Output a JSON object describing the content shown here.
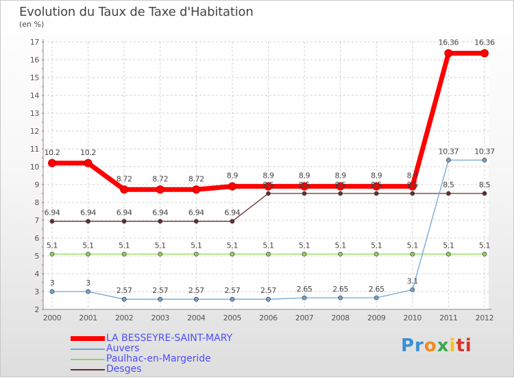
{
  "header": {
    "title": "Evolution du Taux de Taxe d'Habitation",
    "subtitle": "(en %)"
  },
  "chart_data": {
    "type": "line",
    "title": "Evolution du Taux de Taxe d'Habitation",
    "ylabel": "(en %)",
    "xlabel": "",
    "ylim": [
      2,
      17
    ],
    "yticks": [
      2,
      3,
      4,
      5,
      6,
      7,
      8,
      9,
      10,
      11,
      12,
      13,
      14,
      15,
      16,
      17
    ],
    "categories": [
      "2000",
      "2001",
      "2002",
      "2003",
      "2004",
      "2005",
      "2006",
      "2007",
      "2008",
      "2009",
      "2010",
      "2011",
      "2012"
    ],
    "series": [
      {
        "name": "Desges",
        "color": "#6b2a2a",
        "width": 1.3,
        "dot": 5,
        "values": [
          6.94,
          6.94,
          6.94,
          6.94,
          6.94,
          6.94,
          8.5,
          8.5,
          8.5,
          8.5,
          8.5,
          8.5,
          8.5
        ],
        "labels": [
          "6.94",
          "6.94",
          "6.94",
          "6.94",
          "6.94",
          "6.94",
          "8.5",
          "8.5",
          "8.5",
          "8.5",
          "8.5",
          "8.5",
          "8.5"
        ]
      },
      {
        "name": "Paulhac-en-Margeride",
        "color": "#8fd45a",
        "width": 1.3,
        "dot": 5,
        "values": [
          5.1,
          5.1,
          5.1,
          5.1,
          5.1,
          5.1,
          5.1,
          5.1,
          5.1,
          5.1,
          5.1,
          5.1,
          5.1
        ],
        "labels": [
          "5.1",
          "5.1",
          "5.1",
          "5.1",
          "5.1",
          "5.1",
          "5.1",
          "5.1",
          "5.1",
          "5.1",
          "5.1",
          "5.1",
          "5.1"
        ]
      },
      {
        "name": "Auvers",
        "color": "#6ea6d8",
        "width": 1.3,
        "dot": 5,
        "values": [
          3,
          3,
          2.57,
          2.57,
          2.57,
          2.57,
          2.57,
          2.65,
          2.65,
          2.65,
          3.1,
          10.37,
          10.37
        ],
        "labels": [
          "3",
          "3",
          "2.57",
          "2.57",
          "2.57",
          "2.57",
          "2.57",
          "2.65",
          "2.65",
          "2.65",
          "3.1",
          "10.37",
          "10.37"
        ]
      },
      {
        "name": "LA BESSEYRE-SAINT-MARY",
        "color": "#ff0000",
        "width": 7,
        "dot": 7,
        "values": [
          10.2,
          10.2,
          8.72,
          8.72,
          8.72,
          8.9,
          8.9,
          8.9,
          8.9,
          8.9,
          8.9,
          16.36,
          16.36
        ],
        "labels": [
          "10.2",
          "10.2",
          "8.72",
          "8.72",
          "8.72",
          "8.9",
          "8.9",
          "8.9",
          "8.9",
          "8.9",
          "8.9",
          "16.36",
          "16.36"
        ]
      }
    ]
  },
  "legend": [
    {
      "label": "LA BESSEYRE-SAINT-MARY",
      "color": "#ff0000"
    },
    {
      "label": "Auvers",
      "color": "#6ea6d8"
    },
    {
      "label": "Paulhac-en-Margeride",
      "color": "#8fd45a"
    },
    {
      "label": "Desges",
      "color": "#6b2a2a"
    }
  ],
  "logo": {
    "p1": "Pr",
    "p2": "o",
    "p3": "x",
    "p4": "i",
    "p5": "ti"
  }
}
